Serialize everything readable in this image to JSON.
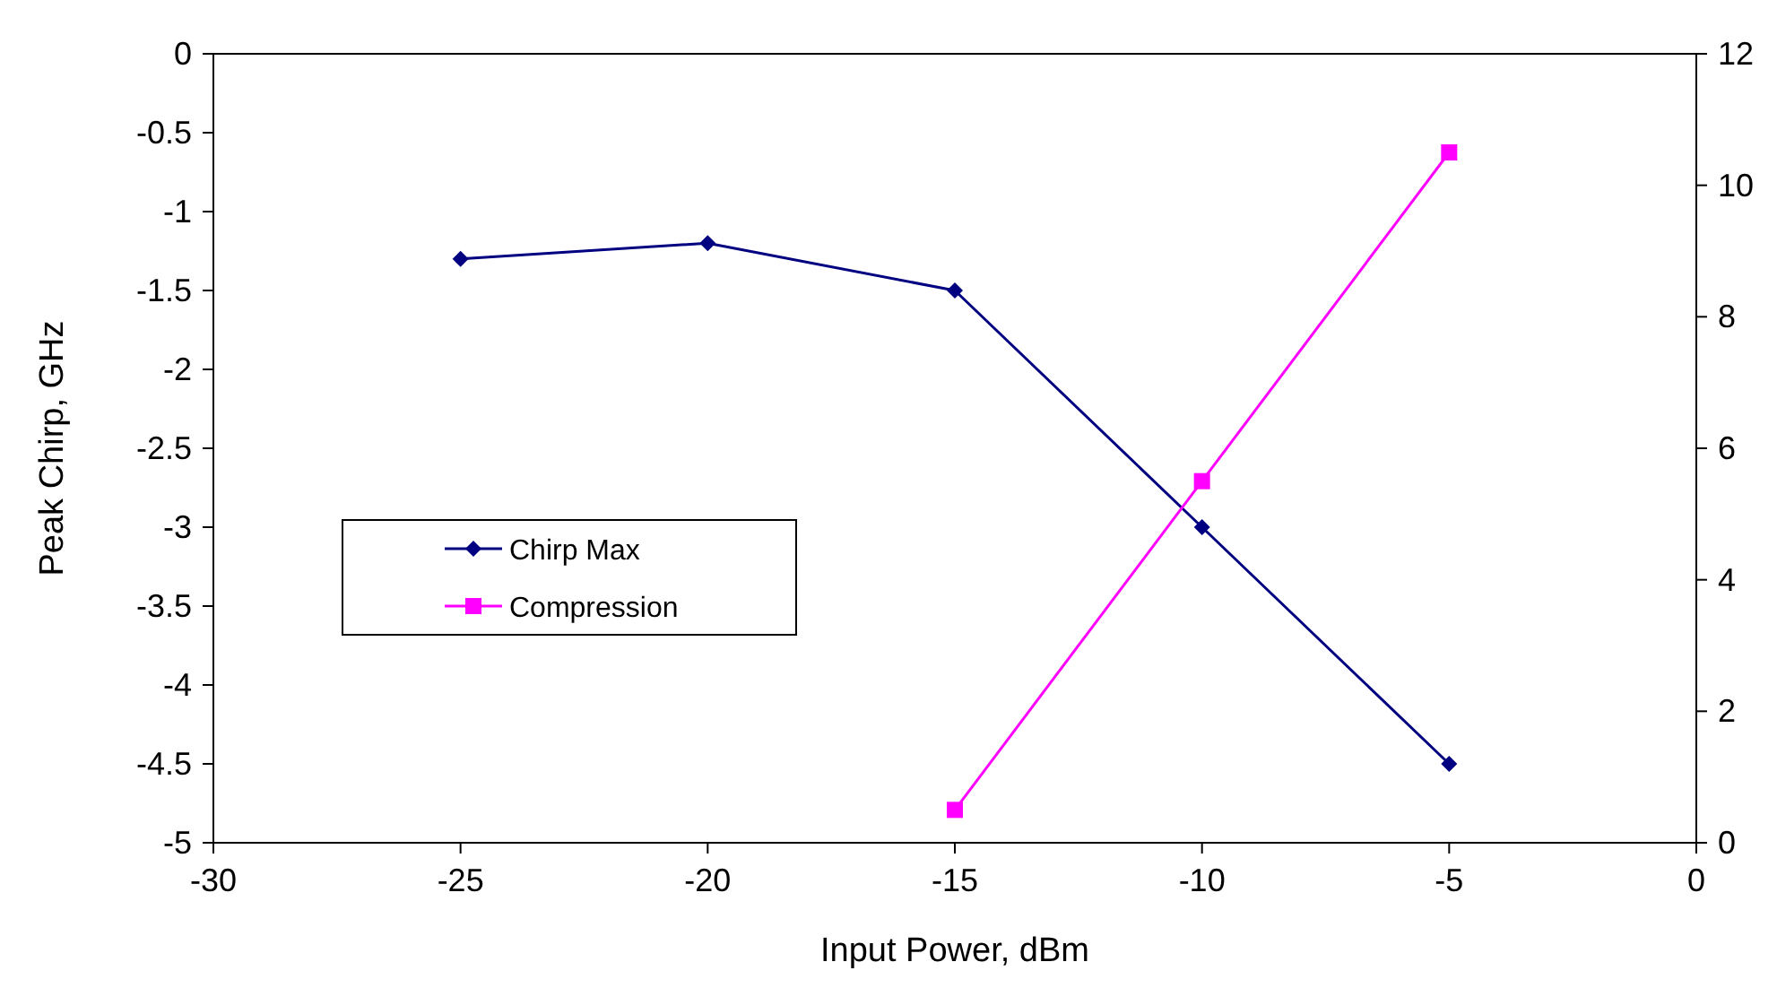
{
  "chart_data": {
    "type": "line",
    "xlabel": "Input Power, dBm",
    "ylabel": "Peak Chirp, GHz",
    "x": [
      -25,
      -20,
      -15,
      -10,
      -5
    ],
    "series": [
      {
        "name": "Chirp Max",
        "color": "#000080",
        "marker": "diamond",
        "values": [
          -1.3,
          -1.2,
          -1.5,
          -3.0,
          -4.5
        ]
      },
      {
        "name": "Compression",
        "color": "#ff00ff",
        "marker": "square",
        "axis": "y2",
        "x": [
          -15,
          -10,
          -5
        ],
        "values": [
          0.5,
          5.5,
          10.5
        ]
      }
    ],
    "xlim": [
      -30,
      0
    ],
    "xticks": [
      -30,
      -25,
      -20,
      -15,
      -10,
      -5,
      0
    ],
    "ylim": [
      -5,
      0
    ],
    "yticks": [
      -5,
      -4.5,
      -4,
      -3.5,
      -3,
      -2.5,
      -2,
      -1.5,
      -1,
      -0.5,
      0
    ],
    "y2lim": [
      0,
      12
    ],
    "y2ticks": [
      0,
      2,
      4,
      6,
      8,
      10,
      12
    ],
    "grid": false,
    "legend": "left",
    "line_style": "solid"
  }
}
